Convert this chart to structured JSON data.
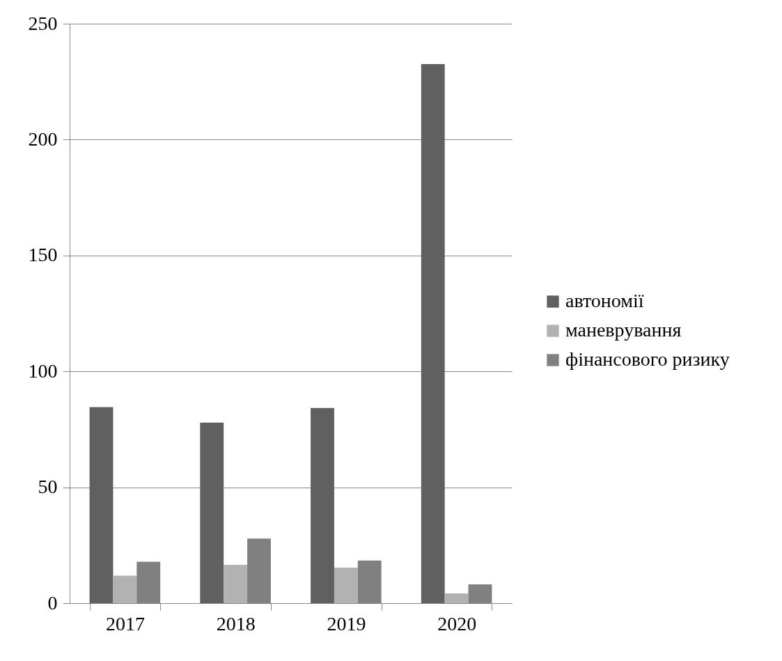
{
  "chart_data": {
    "type": "bar",
    "categories": [
      "2017",
      "2018",
      "2019",
      "2020"
    ],
    "series": [
      {
        "name": "автономії",
        "color": "#606060",
        "values": [
          84.6,
          77.9,
          84.2,
          232.6
        ]
      },
      {
        "name": "маневрування",
        "color": "#b2b2b2",
        "values": [
          11.9,
          16.5,
          15.3,
          4.2
        ]
      },
      {
        "name": "фінансового ризику",
        "color": "#808080",
        "values": [
          17.9,
          27.9,
          18.4,
          8.1
        ]
      }
    ],
    "ylim": [
      0,
      250
    ],
    "yticks": [
      0,
      50,
      100,
      150,
      200,
      250
    ],
    "grid": "y",
    "legend": "right"
  }
}
